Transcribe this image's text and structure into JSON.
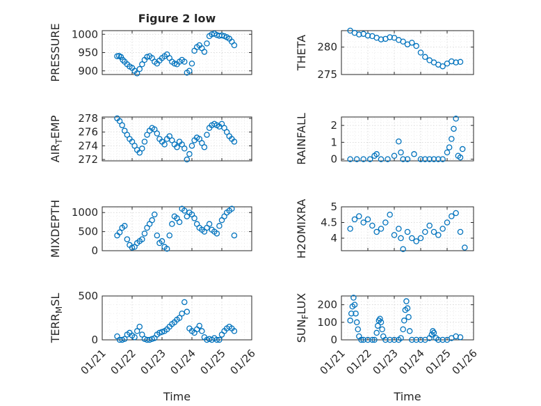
{
  "figure": {
    "marker_color": "#0072BD"
  },
  "chart_data": [
    {
      "type": "scatter",
      "title": "Figure 2 low",
      "ylabel": "PRESSURE",
      "xlabel": "",
      "xlim": [
        "01/21",
        "01/26"
      ],
      "ylim": [
        890,
        1010
      ],
      "yticks": [
        "900",
        "950",
        "1000"
      ],
      "xtick_labels": [],
      "grid": true,
      "series": [
        {
          "x": [
            "01/21 12:00",
            "01/21 13:30",
            "01/21 15:00",
            "01/21 16:30",
            "01/21 18:00",
            "01/21 20:00",
            "01/21 22:00",
            "01/22 00:00",
            "01/22 02:00",
            "01/22 04:00",
            "01/22 06:00",
            "01/22 08:00",
            "01/22 10:00",
            "01/22 12:00",
            "01/22 14:00",
            "01/22 16:00",
            "01/22 18:00",
            "01/22 20:00",
            "01/22 22:00",
            "01/23 00:00",
            "01/23 02:00",
            "01/23 04:00",
            "01/23 06:00",
            "01/23 08:00",
            "01/23 10:00",
            "01/23 12:00",
            "01/23 14:00",
            "01/23 16:00",
            "01/23 18:00",
            "01/23 20:00",
            "01/23 22:00",
            "01/24 00:00",
            "01/24 02:00",
            "01/24 04:00",
            "01/24 06:00",
            "01/24 08:00",
            "01/24 10:00",
            "01/24 12:00",
            "01/24 14:00",
            "01/24 16:00",
            "01/24 18:00",
            "01/24 20:00",
            "01/24 22:00",
            "01/25 00:00",
            "01/25 02:00",
            "01/25 04:00",
            "01/25 06:00",
            "01/25 08:00",
            "01/25 10:00"
          ],
          "y": [
            940,
            941,
            938,
            930,
            925,
            918,
            912,
            908,
            900,
            893,
            905,
            918,
            930,
            938,
            940,
            935,
            925,
            920,
            928,
            935,
            940,
            945,
            935,
            925,
            920,
            918,
            925,
            930,
            925,
            895,
            900,
            920,
            955,
            965,
            970,
            962,
            952,
            975,
            995,
            1000,
            1002,
            998,
            996,
            997,
            995,
            992,
            988,
            980,
            970
          ]
        }
      ]
    },
    {
      "type": "scatter",
      "title": "",
      "ylabel": "THETA",
      "xlabel": "",
      "xlim": [
        "01/21",
        "01/26"
      ],
      "ylim": [
        275,
        283
      ],
      "yticks": [
        "275",
        "280"
      ],
      "xtick_labels": [],
      "grid": true,
      "series": [
        {
          "x": [
            "01/21 08:00",
            "01/21 12:00",
            "01/21 16:00",
            "01/21 20:00",
            "01/22 00:00",
            "01/22 04:00",
            "01/22 08:00",
            "01/22 12:00",
            "01/22 16:00",
            "01/22 20:00",
            "01/23 00:00",
            "01/23 04:00",
            "01/23 08:00",
            "01/23 12:00",
            "01/23 16:00",
            "01/23 20:00",
            "01/24 00:00",
            "01/24 04:00",
            "01/24 08:00",
            "01/24 12:00",
            "01/24 16:00",
            "01/24 20:00",
            "01/25 00:00",
            "01/25 04:00",
            "01/25 08:00",
            "01/25 12:00"
          ],
          "y": [
            283,
            282.6,
            282.3,
            282.4,
            282.1,
            282.0,
            281.7,
            281.4,
            281.5,
            281.8,
            281.7,
            281.3,
            281.0,
            280.5,
            280.8,
            280.2,
            279.0,
            278.2,
            277.6,
            277.2,
            276.8,
            276.5,
            277.0,
            277.4,
            277.2,
            277.3
          ]
        }
      ]
    },
    {
      "type": "scatter",
      "title": "",
      "ylabel": "AIR_TEMP",
      "xlabel": "",
      "xlim": [
        "01/21",
        "01/26"
      ],
      "ylim": [
        271.8,
        278.2
      ],
      "yticks": [
        "272",
        "274",
        "276",
        "278"
      ],
      "xtick_labels": [],
      "grid": true,
      "series": [
        {
          "x": [
            "01/21 12:00",
            "01/21 14:00",
            "01/21 16:00",
            "01/21 18:00",
            "01/21 20:00",
            "01/21 22:00",
            "01/22 00:00",
            "01/22 02:00",
            "01/22 04:00",
            "01/22 06:00",
            "01/22 08:00",
            "01/22 10:00",
            "01/22 12:00",
            "01/22 14:00",
            "01/22 16:00",
            "01/22 18:00",
            "01/22 20:00",
            "01/22 22:00",
            "01/23 00:00",
            "01/23 02:00",
            "01/23 04:00",
            "01/23 06:00",
            "01/23 08:00",
            "01/23 10:00",
            "01/23 12:00",
            "01/23 14:00",
            "01/23 16:00",
            "01/23 18:00",
            "01/23 20:00",
            "01/23 22:00",
            "01/24 00:00",
            "01/24 02:00",
            "01/24 04:00",
            "01/24 06:00",
            "01/24 08:00",
            "01/24 10:00",
            "01/24 12:00",
            "01/24 14:00",
            "01/24 16:00",
            "01/24 18:00",
            "01/24 20:00",
            "01/24 22:00",
            "01/25 00:00",
            "01/25 02:00",
            "01/25 04:00",
            "01/25 06:00",
            "01/25 08:00",
            "01/25 10:00"
          ],
          "y": [
            278,
            277.6,
            277.0,
            276.2,
            275.6,
            275.0,
            274.6,
            274.0,
            273.4,
            273.0,
            273.6,
            274.6,
            275.6,
            276.2,
            276.6,
            276.4,
            275.8,
            275.0,
            274.6,
            274.2,
            275.0,
            275.4,
            274.8,
            274.2,
            273.8,
            274.6,
            274.2,
            273.6,
            272.0,
            272.8,
            274.0,
            274.8,
            275.2,
            275.0,
            274.4,
            273.8,
            275.6,
            276.6,
            277.0,
            277.2,
            277.0,
            276.8,
            277.2,
            276.6,
            276.0,
            275.4,
            275.0,
            274.6
          ]
        }
      ]
    },
    {
      "type": "scatter",
      "title": "",
      "ylabel": "RAINFALL",
      "xlabel": "",
      "xlim": [
        "01/21",
        "01/26"
      ],
      "ylim": [
        -0.1,
        2.5
      ],
      "yticks": [
        "0",
        "1",
        "2"
      ],
      "xtick_labels": [],
      "grid": true,
      "series": [
        {
          "x": [
            "01/21 08:00",
            "01/21 14:00",
            "01/21 20:00",
            "01/22 02:00",
            "01/22 06:00",
            "01/22 08:00",
            "01/22 12:00",
            "01/22 18:00",
            "01/23 00:00",
            "01/23 04:00",
            "01/23 06:00",
            "01/23 08:00",
            "01/23 12:00",
            "01/23 18:00",
            "01/24 00:00",
            "01/24 04:00",
            "01/24 08:00",
            "01/24 12:00",
            "01/24 16:00",
            "01/24 20:00",
            "01/25 00:00",
            "01/25 02:00",
            "01/25 04:00",
            "01/25 06:00",
            "01/25 08:00",
            "01/25 10:00",
            "01/25 12:00",
            "01/25 14:00"
          ],
          "y": [
            0,
            0,
            0,
            0,
            0.2,
            0.3,
            0,
            0,
            0.2,
            1.05,
            0.4,
            0,
            0,
            0.3,
            0,
            0,
            0,
            0,
            0,
            0,
            0.4,
            0.7,
            1.2,
            1.8,
            2.4,
            0.2,
            0.1,
            0.6
          ]
        }
      ]
    },
    {
      "type": "scatter",
      "title": "",
      "ylabel": "MIXDEPTH",
      "xlabel": "",
      "xlim": [
        "01/21",
        "01/26"
      ],
      "ylim": [
        0,
        1150
      ],
      "yticks": [
        "0",
        "500",
        "1000"
      ],
      "xtick_labels": [],
      "grid": true,
      "series": [
        {
          "x": [
            "01/21 12:00",
            "01/21 14:00",
            "01/21 16:00",
            "01/21 18:00",
            "01/21 20:00",
            "01/21 22:00",
            "01/22 00:00",
            "01/22 02:00",
            "01/22 04:00",
            "01/22 06:00",
            "01/22 08:00",
            "01/22 10:00",
            "01/22 12:00",
            "01/22 14:00",
            "01/22 16:00",
            "01/22 18:00",
            "01/22 20:00",
            "01/22 22:00",
            "01/23 00:00",
            "01/23 02:00",
            "01/23 04:00",
            "01/23 06:00",
            "01/23 08:00",
            "01/23 10:00",
            "01/23 12:00",
            "01/23 14:00",
            "01/23 16:00",
            "01/23 18:00",
            "01/23 20:00",
            "01/23 22:00",
            "01/24 00:00",
            "01/24 02:00",
            "01/24 04:00",
            "01/24 06:00",
            "01/24 08:00",
            "01/24 10:00",
            "01/24 12:00",
            "01/24 14:00",
            "01/24 16:00",
            "01/24 18:00",
            "01/24 20:00",
            "01/24 22:00",
            "01/25 00:00",
            "01/25 02:00",
            "01/25 04:00",
            "01/25 06:00",
            "01/25 08:00",
            "01/25 10:00"
          ],
          "y": [
            400,
            480,
            600,
            650,
            300,
            150,
            80,
            100,
            200,
            250,
            300,
            450,
            600,
            700,
            800,
            950,
            400,
            200,
            250,
            100,
            50,
            400,
            700,
            900,
            850,
            750,
            1100,
            1050,
            900,
            1000,
            950,
            850,
            700,
            600,
            550,
            500,
            600,
            700,
            550,
            500,
            450,
            650,
            800,
            900,
            1000,
            1050,
            1100,
            400
          ]
        }
      ]
    },
    {
      "type": "scatter",
      "title": "",
      "ylabel": "H2OMIXRA",
      "xlabel": "",
      "xlim": [
        "01/21",
        "01/26"
      ],
      "ylim": [
        3.6,
        5.0
      ],
      "yticks": [
        "4",
        "4.5",
        "5"
      ],
      "xtick_labels": [],
      "grid": true,
      "series": [
        {
          "x": [
            "01/21 08:00",
            "01/21 12:00",
            "01/21 16:00",
            "01/21 20:00",
            "01/22 00:00",
            "01/22 04:00",
            "01/22 08:00",
            "01/22 12:00",
            "01/22 16:00",
            "01/22 20:00",
            "01/23 00:00",
            "01/23 04:00",
            "01/23 06:00",
            "01/23 08:00",
            "01/23 12:00",
            "01/23 16:00",
            "01/23 20:00",
            "01/24 00:00",
            "01/24 04:00",
            "01/24 08:00",
            "01/24 12:00",
            "01/24 16:00",
            "01/24 20:00",
            "01/25 00:00",
            "01/25 04:00",
            "01/25 08:00",
            "01/25 12:00",
            "01/25 16:00"
          ],
          "y": [
            4.3,
            4.6,
            4.7,
            4.5,
            4.6,
            4.4,
            4.2,
            4.3,
            4.5,
            4.75,
            4.1,
            4.3,
            4.0,
            3.65,
            4.2,
            4.0,
            3.9,
            4.0,
            4.2,
            4.4,
            4.2,
            4.1,
            4.3,
            4.5,
            4.7,
            4.8,
            4.2,
            3.7
          ]
        }
      ]
    },
    {
      "type": "scatter",
      "title": "",
      "ylabel": "TERR_MSL",
      "xlabel": "Time",
      "xlim": [
        "01/21",
        "01/26"
      ],
      "ylim": [
        0,
        500
      ],
      "yticks": [
        "0",
        "500"
      ],
      "xtick_labels": [
        "01/21",
        "01/22",
        "01/23",
        "01/24",
        "01/25",
        "01/26"
      ],
      "grid": true,
      "series": [
        {
          "x": [
            "01/21 12:00",
            "01/21 14:00",
            "01/21 16:00",
            "01/21 18:00",
            "01/21 20:00",
            "01/21 22:00",
            "01/22 00:00",
            "01/22 02:00",
            "01/22 04:00",
            "01/22 06:00",
            "01/22 08:00",
            "01/22 10:00",
            "01/22 12:00",
            "01/22 14:00",
            "01/22 16:00",
            "01/22 18:00",
            "01/22 20:00",
            "01/22 22:00",
            "01/23 00:00",
            "01/23 02:00",
            "01/23 04:00",
            "01/23 06:00",
            "01/23 08:00",
            "01/23 10:00",
            "01/23 12:00",
            "01/23 14:00",
            "01/23 16:00",
            "01/23 18:00",
            "01/23 20:00",
            "01/23 22:00",
            "01/24 00:00",
            "01/24 02:00",
            "01/24 04:00",
            "01/24 06:00",
            "01/24 08:00",
            "01/24 10:00",
            "01/24 12:00",
            "01/24 14:00",
            "01/24 16:00",
            "01/24 18:00",
            "01/24 20:00",
            "01/24 22:00",
            "01/25 00:00",
            "01/25 02:00",
            "01/25 04:00",
            "01/25 06:00",
            "01/25 08:00",
            "01/25 10:00"
          ],
          "y": [
            40,
            0,
            0,
            10,
            60,
            80,
            50,
            30,
            100,
            150,
            60,
            10,
            0,
            0,
            10,
            20,
            60,
            80,
            90,
            100,
            120,
            150,
            180,
            200,
            230,
            250,
            300,
            430,
            320,
            130,
            100,
            80,
            120,
            160,
            100,
            30,
            0,
            10,
            0,
            20,
            0,
            0,
            60,
            100,
            130,
            150,
            130,
            100
          ]
        }
      ]
    },
    {
      "type": "scatter",
      "title": "",
      "ylabel": "SUN_FLUX",
      "xlabel": "Time",
      "xlim": [
        "01/21",
        "01/26"
      ],
      "ylim": [
        0,
        250
      ],
      "yticks": [
        "0",
        "100",
        "200"
      ],
      "xtick_labels": [
        "01/21",
        "01/22",
        "01/23",
        "01/24",
        "01/25",
        "01/26"
      ],
      "grid": true,
      "series": [
        {
          "x": [
            "01/21 08:00",
            "01/21 09:00",
            "01/21 10:00",
            "01/21 11:00",
            "01/21 12:00",
            "01/21 13:00",
            "01/21 14:00",
            "01/21 15:00",
            "01/21 16:00",
            "01/21 18:00",
            "01/21 20:00",
            "01/22 00:00",
            "01/22 04:00",
            "01/22 06:00",
            "01/22 08:00",
            "01/22 09:00",
            "01/22 10:00",
            "01/22 11:00",
            "01/22 12:00",
            "01/22 13:00",
            "01/22 14:00",
            "01/22 16:00",
            "01/22 20:00",
            "01/23 00:00",
            "01/23 04:00",
            "01/23 06:00",
            "01/23 08:00",
            "01/23 09:00",
            "01/23 10:00",
            "01/23 11:00",
            "01/23 12:00",
            "01/23 13:00",
            "01/23 14:00",
            "01/23 16:00",
            "01/23 20:00",
            "01/24 00:00",
            "01/24 04:00",
            "01/24 08:00",
            "01/24 10:00",
            "01/24 11:00",
            "01/24 12:00",
            "01/24 14:00",
            "01/24 16:00",
            "01/24 20:00",
            "01/25 00:00",
            "01/25 04:00",
            "01/25 08:00",
            "01/25 12:00"
          ],
          "y": [
            110,
            150,
            190,
            240,
            200,
            150,
            100,
            60,
            20,
            0,
            0,
            0,
            0,
            0,
            40,
            80,
            110,
            120,
            100,
            60,
            20,
            0,
            0,
            0,
            0,
            10,
            60,
            110,
            170,
            220,
            180,
            130,
            50,
            0,
            0,
            0,
            0,
            10,
            30,
            50,
            40,
            10,
            0,
            0,
            0,
            10,
            20,
            15
          ]
        }
      ]
    }
  ]
}
